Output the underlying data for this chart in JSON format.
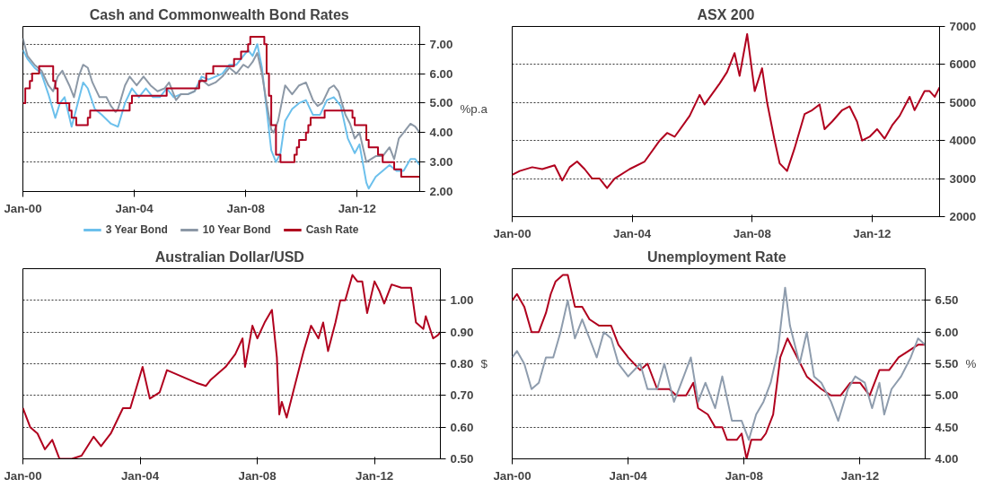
{
  "chart_data": [
    {
      "type": "line",
      "title": "Cash and Commonwealth  Bond Rates",
      "ylabel": "%p.a",
      "grid": "y",
      "legend": "bottom",
      "xlim": [
        "2000-01",
        "2014-04"
      ],
      "xticks": [
        {
          "value": "2000-01",
          "label": "Jan-00"
        },
        {
          "value": "2004-01",
          "label": "Jan-04"
        },
        {
          "value": "2008-01",
          "label": "Jan-08"
        },
        {
          "value": "2012-01",
          "label": "Jan-12"
        }
      ],
      "ylim": [
        2,
        7.6
      ],
      "yticks": [
        {
          "value": 2,
          "label": "2.00"
        },
        {
          "value": 3,
          "label": "3.00"
        },
        {
          "value": 4,
          "label": "4.00"
        },
        {
          "value": 5,
          "label": "5.00"
        },
        {
          "value": 6,
          "label": "6.00"
        },
        {
          "value": 7,
          "label": "7.00"
        }
      ],
      "series": [
        {
          "name": "3 Year Bond",
          "color": "#6cc0ec",
          "x": [
            "2000-01",
            "2000-03",
            "2000-06",
            "2000-09",
            "2000-12",
            "2001-03",
            "2001-05",
            "2001-07",
            "2001-10",
            "2001-12",
            "2002-03",
            "2002-05",
            "2002-08",
            "2002-11",
            "2003-03",
            "2003-06",
            "2003-09",
            "2003-12",
            "2004-03",
            "2004-06",
            "2004-09",
            "2004-12",
            "2005-03",
            "2005-06",
            "2005-09",
            "2005-12",
            "2006-03",
            "2006-06",
            "2006-09",
            "2006-12",
            "2007-03",
            "2007-06",
            "2007-09",
            "2007-12",
            "2008-02",
            "2008-04",
            "2008-06",
            "2008-08",
            "2008-10",
            "2008-12",
            "2009-02",
            "2009-04",
            "2009-06",
            "2009-09",
            "2009-12",
            "2010-03",
            "2010-06",
            "2010-09",
            "2010-12",
            "2011-03",
            "2011-06",
            "2011-09",
            "2011-12",
            "2012-02",
            "2012-05",
            "2012-06",
            "2012-09",
            "2012-12",
            "2013-03",
            "2013-06",
            "2013-09",
            "2013-12",
            "2014-02",
            "2014-04"
          ],
          "values": [
            6.8,
            6.5,
            6.2,
            6.0,
            5.3,
            4.5,
            5.0,
            5.2,
            4.2,
            4.8,
            5.7,
            5.5,
            4.8,
            4.6,
            4.3,
            4.2,
            5.0,
            5.5,
            5.2,
            5.5,
            5.2,
            5.2,
            5.5,
            5.2,
            5.3,
            5.3,
            5.4,
            5.9,
            5.8,
            5.9,
            6.0,
            6.3,
            6.3,
            6.6,
            6.8,
            6.6,
            7.0,
            6.2,
            4.8,
            3.4,
            3.0,
            3.3,
            4.4,
            4.8,
            5.0,
            5.1,
            4.6,
            4.6,
            5.1,
            5.2,
            4.9,
            3.8,
            3.3,
            3.6,
            2.3,
            2.1,
            2.5,
            2.7,
            2.9,
            2.7,
            2.7,
            3.1,
            3.1,
            2.9
          ]
        },
        {
          "name": "10 Year Bond",
          "color": "#8c98a6",
          "x": [
            "2000-01",
            "2000-03",
            "2000-06",
            "2000-09",
            "2000-12",
            "2001-02",
            "2001-04",
            "2001-06",
            "2001-09",
            "2001-11",
            "2002-01",
            "2002-03",
            "2002-05",
            "2002-07",
            "2002-10",
            "2003-01",
            "2003-03",
            "2003-05",
            "2003-06",
            "2003-09",
            "2003-11",
            "2004-02",
            "2004-05",
            "2004-08",
            "2004-11",
            "2005-02",
            "2005-04",
            "2005-07",
            "2005-09",
            "2005-12",
            "2006-03",
            "2006-06",
            "2006-09",
            "2006-12",
            "2007-03",
            "2007-06",
            "2007-09",
            "2007-12",
            "2008-02",
            "2008-04",
            "2008-06",
            "2008-08",
            "2008-10",
            "2008-12",
            "2009-01",
            "2009-03",
            "2009-05",
            "2009-06",
            "2009-09",
            "2009-12",
            "2010-03",
            "2010-06",
            "2010-08",
            "2010-10",
            "2011-01",
            "2011-03",
            "2011-05",
            "2011-08",
            "2011-10",
            "2011-12",
            "2012-02",
            "2012-05",
            "2012-07",
            "2012-09",
            "2012-12",
            "2013-03",
            "2013-05",
            "2013-07",
            "2013-09",
            "2013-12",
            "2014-02",
            "2014-04"
          ],
          "values": [
            7.2,
            6.6,
            6.3,
            6.1,
            5.6,
            5.4,
            5.9,
            6.1,
            5.6,
            5.2,
            5.9,
            6.3,
            6.2,
            5.7,
            5.2,
            5.2,
            4.9,
            4.7,
            4.8,
            5.6,
            5.9,
            5.6,
            5.9,
            5.6,
            5.4,
            5.5,
            5.7,
            5.1,
            5.3,
            5.3,
            5.4,
            5.8,
            5.6,
            5.7,
            5.9,
            6.2,
            6.0,
            6.3,
            6.2,
            6.4,
            6.7,
            6.0,
            5.0,
            4.1,
            4.0,
            4.4,
            5.2,
            5.6,
            5.3,
            5.6,
            5.7,
            5.1,
            4.9,
            5.0,
            5.5,
            5.6,
            5.4,
            4.6,
            4.3,
            3.8,
            4.0,
            3.0,
            3.1,
            3.2,
            3.2,
            3.5,
            3.1,
            3.8,
            4.0,
            4.3,
            4.2,
            4.0
          ]
        },
        {
          "name": "Cash Rate",
          "type": "step",
          "color": "#b0001e",
          "x": [
            "2000-01",
            "2000-02",
            "2000-04",
            "2000-05",
            "2000-08",
            "2001-02",
            "2001-03",
            "2001-04",
            "2001-09",
            "2001-10",
            "2001-12",
            "2002-05",
            "2002-06",
            "2003-11",
            "2003-12",
            "2005-03",
            "2006-05",
            "2006-08",
            "2006-11",
            "2007-08",
            "2007-11",
            "2008-02",
            "2008-03",
            "2008-09",
            "2008-10",
            "2008-11",
            "2008-12",
            "2009-02",
            "2009-04",
            "2009-10",
            "2009-11",
            "2009-12",
            "2010-03",
            "2010-04",
            "2010-05",
            "2010-11",
            "2011-11",
            "2011-12",
            "2012-05",
            "2012-06",
            "2012-10",
            "2012-12",
            "2013-05",
            "2013-08",
            "2014-04"
          ],
          "values": [
            5.0,
            5.5,
            5.75,
            6.0,
            6.25,
            5.75,
            5.5,
            5.0,
            4.75,
            4.5,
            4.25,
            4.5,
            4.75,
            5.0,
            5.25,
            5.5,
            5.75,
            6.0,
            6.25,
            6.5,
            6.75,
            7.0,
            7.25,
            7.0,
            6.0,
            5.25,
            4.25,
            3.25,
            3.0,
            3.25,
            3.5,
            3.75,
            4.0,
            4.25,
            4.5,
            4.75,
            4.5,
            4.25,
            3.75,
            3.5,
            3.25,
            3.0,
            2.75,
            2.5,
            2.5
          ]
        }
      ]
    },
    {
      "type": "line",
      "title": "ASX 200",
      "grid": "y",
      "xlim": [
        "2000-01",
        "2014-04"
      ],
      "xticks": [
        {
          "value": "2000-01",
          "label": "Jan-00"
        },
        {
          "value": "2004-01",
          "label": "Jan-04"
        },
        {
          "value": "2008-01",
          "label": "Jan-08"
        },
        {
          "value": "2012-01",
          "label": "Jan-12"
        }
      ],
      "ylim": [
        2000,
        7000
      ],
      "yticks": [
        2000,
        3000,
        4000,
        5000,
        6000,
        7000
      ],
      "series": [
        {
          "color": "#b0001e",
          "x": [
            "2000-01",
            "2000-04",
            "2000-09",
            "2001-01",
            "2001-06",
            "2001-09",
            "2001-12",
            "2002-03",
            "2002-06",
            "2002-09",
            "2002-12",
            "2003-03",
            "2003-06",
            "2003-12",
            "2004-06",
            "2004-12",
            "2005-03",
            "2005-06",
            "2005-12",
            "2006-04",
            "2006-06",
            "2006-12",
            "2007-03",
            "2007-06",
            "2007-08",
            "2007-11",
            "2008-01",
            "2008-02",
            "2008-05",
            "2008-07",
            "2008-10",
            "2008-12",
            "2009-03",
            "2009-06",
            "2009-10",
            "2010-01",
            "2010-04",
            "2010-06",
            "2010-09",
            "2011-01",
            "2011-04",
            "2011-07",
            "2011-09",
            "2011-12",
            "2012-03",
            "2012-06",
            "2012-09",
            "2012-12",
            "2013-04",
            "2013-06",
            "2013-10",
            "2013-12",
            "2014-02",
            "2014-04"
          ],
          "values": [
            3100,
            3200,
            3300,
            3250,
            3350,
            2950,
            3300,
            3450,
            3250,
            3000,
            3000,
            2750,
            3000,
            3250,
            3450,
            4000,
            4200,
            4100,
            4650,
            5200,
            4950,
            5500,
            5800,
            6300,
            5700,
            6800,
            5800,
            5300,
            5900,
            5000,
            4000,
            3400,
            3200,
            3800,
            4700,
            4800,
            4950,
            4300,
            4500,
            4800,
            4900,
            4500,
            4000,
            4100,
            4300,
            4050,
            4400,
            4650,
            5150,
            4800,
            5300,
            5300,
            5150,
            5400
          ]
        }
      ]
    },
    {
      "type": "line",
      "title": "Australian  Dollar/USD",
      "ylabel": "$",
      "grid": "y",
      "xlim": [
        "2000-01",
        "2014-04"
      ],
      "xticks": [
        {
          "value": "2000-01",
          "label": "Jan-00"
        },
        {
          "value": "2004-01",
          "label": "Jan-04"
        },
        {
          "value": "2008-01",
          "label": "Jan-08"
        },
        {
          "value": "2012-01",
          "label": "Jan-12"
        }
      ],
      "ylim": [
        0.5,
        1.1
      ],
      "yticks": [
        {
          "value": 0.5,
          "label": "0.50"
        },
        {
          "value": 0.6,
          "label": "0.60"
        },
        {
          "value": 0.7,
          "label": "0.70"
        },
        {
          "value": 0.8,
          "label": "0.80"
        },
        {
          "value": 0.9,
          "label": "0.90"
        },
        {
          "value": 1.0,
          "label": "1.00"
        }
      ],
      "series": [
        {
          "color": "#b0001e",
          "x": [
            "2000-01",
            "2000-04",
            "2000-07",
            "2000-10",
            "2001-01",
            "2001-04",
            "2001-09",
            "2002-01",
            "2002-06",
            "2002-09",
            "2003-01",
            "2003-06",
            "2003-09",
            "2004-02",
            "2004-05",
            "2004-09",
            "2004-12",
            "2005-06",
            "2005-12",
            "2006-04",
            "2006-06",
            "2006-12",
            "2007-04",
            "2007-07",
            "2007-08",
            "2007-11",
            "2008-01",
            "2008-04",
            "2008-07",
            "2008-09",
            "2008-10",
            "2008-11",
            "2009-01",
            "2009-04",
            "2009-08",
            "2009-11",
            "2010-02",
            "2010-04",
            "2010-06",
            "2010-09",
            "2010-11",
            "2011-01",
            "2011-04",
            "2011-06",
            "2011-08",
            "2011-10",
            "2012-01",
            "2012-03",
            "2012-05",
            "2012-08",
            "2012-12",
            "2013-04",
            "2013-06",
            "2013-09",
            "2013-10",
            "2014-01",
            "2014-03",
            "2014-04"
          ],
          "values": [
            0.66,
            0.6,
            0.58,
            0.53,
            0.56,
            0.5,
            0.5,
            0.51,
            0.57,
            0.54,
            0.58,
            0.66,
            0.66,
            0.79,
            0.69,
            0.71,
            0.78,
            0.76,
            0.74,
            0.73,
            0.75,
            0.79,
            0.83,
            0.88,
            0.79,
            0.92,
            0.88,
            0.93,
            0.97,
            0.82,
            0.64,
            0.68,
            0.63,
            0.72,
            0.84,
            0.92,
            0.88,
            0.93,
            0.84,
            0.93,
            1.0,
            1.0,
            1.08,
            1.06,
            1.06,
            0.96,
            1.06,
            1.03,
            0.99,
            1.05,
            1.04,
            1.04,
            0.93,
            0.91,
            0.95,
            0.88,
            0.89,
            0.9
          ]
        }
      ]
    },
    {
      "type": "line",
      "title": "Unemployment  Rate",
      "ylabel": "%",
      "grid": "y",
      "xlim": [
        "2000-01",
        "2014-04"
      ],
      "xticks": [
        {
          "value": "2000-01",
          "label": "Jan-00"
        },
        {
          "value": "2004-01",
          "label": "Jan-04"
        },
        {
          "value": "2008-01",
          "label": "Jan-08"
        },
        {
          "value": "2012-01",
          "label": "Jan-12"
        }
      ],
      "ylim": [
        4.0,
        7.0
      ],
      "yticks": [
        {
          "value": 4.0,
          "label": "4.00"
        },
        {
          "value": 4.5,
          "label": "4.50"
        },
        {
          "value": 5.0,
          "label": "5.00"
        },
        {
          "value": 5.5,
          "label": "5.50"
        },
        {
          "value": 6.0,
          "label": "6.00"
        },
        {
          "value": 6.5,
          "label": "6.50"
        }
      ],
      "series": [
        {
          "color": "#b0001e",
          "x": [
            "2000-01",
            "2000-03",
            "2000-06",
            "2000-09",
            "2000-12",
            "2001-03",
            "2001-05",
            "2001-07",
            "2001-10",
            "2001-12",
            "2002-03",
            "2002-06",
            "2002-09",
            "2003-01",
            "2003-06",
            "2003-09",
            "2004-01",
            "2004-06",
            "2004-09",
            "2005-01",
            "2005-06",
            "2005-09",
            "2006-01",
            "2006-04",
            "2006-06",
            "2006-10",
            "2007-01",
            "2007-04",
            "2007-06",
            "2007-10",
            "2007-12",
            "2008-02",
            "2008-04",
            "2008-08",
            "2008-10",
            "2009-01",
            "2009-04",
            "2009-07",
            "2009-11",
            "2010-03",
            "2010-06",
            "2010-09",
            "2011-01",
            "2011-05",
            "2011-09",
            "2012-01",
            "2012-05",
            "2012-09",
            "2013-01",
            "2013-05",
            "2013-09",
            "2014-01",
            "2014-04"
          ],
          "values": [
            6.5,
            6.6,
            6.4,
            6.0,
            6.0,
            6.3,
            6.6,
            6.8,
            6.9,
            6.9,
            6.4,
            6.4,
            6.2,
            6.1,
            6.1,
            5.8,
            5.6,
            5.4,
            5.5,
            5.1,
            5.1,
            5.0,
            5.0,
            5.2,
            4.8,
            4.7,
            4.5,
            4.5,
            4.3,
            4.3,
            4.4,
            4.0,
            4.3,
            4.3,
            4.4,
            4.7,
            5.6,
            5.9,
            5.6,
            5.3,
            5.2,
            5.1,
            5.0,
            5.0,
            5.2,
            5.2,
            5.0,
            5.4,
            5.4,
            5.6,
            5.7,
            5.8,
            5.8
          ]
        },
        {
          "color": "#8e9cad",
          "x": [
            "2000-01",
            "2000-03",
            "2000-06",
            "2000-09",
            "2000-12",
            "2001-03",
            "2001-06",
            "2001-09",
            "2001-12",
            "2002-03",
            "2002-06",
            "2002-09",
            "2002-12",
            "2003-03",
            "2003-06",
            "2003-09",
            "2004-01",
            "2004-06",
            "2004-09",
            "2005-01",
            "2005-04",
            "2005-08",
            "2005-12",
            "2006-03",
            "2006-06",
            "2006-09",
            "2007-01",
            "2007-04",
            "2007-08",
            "2007-12",
            "2008-03",
            "2008-06",
            "2008-09",
            "2008-12",
            "2009-03",
            "2009-06",
            "2009-08",
            "2009-12",
            "2010-03",
            "2010-06",
            "2010-09",
            "2011-01",
            "2011-04",
            "2011-08",
            "2011-11",
            "2012-03",
            "2012-06",
            "2012-09",
            "2012-11",
            "2013-02",
            "2013-06",
            "2013-10",
            "2014-01",
            "2014-04"
          ],
          "values": [
            5.6,
            5.7,
            5.5,
            5.1,
            5.2,
            5.6,
            5.6,
            6.0,
            6.5,
            5.9,
            6.2,
            5.9,
            5.6,
            6.0,
            5.9,
            5.5,
            5.3,
            5.5,
            5.1,
            5.1,
            5.5,
            4.9,
            5.3,
            5.6,
            4.9,
            5.2,
            4.8,
            5.3,
            4.6,
            4.6,
            4.3,
            4.7,
            4.9,
            5.2,
            5.7,
            6.7,
            6.1,
            5.5,
            6.0,
            5.3,
            5.2,
            4.9,
            4.6,
            5.1,
            5.3,
            5.2,
            4.8,
            5.2,
            4.7,
            5.1,
            5.3,
            5.6,
            5.9,
            5.8
          ]
        }
      ]
    }
  ]
}
